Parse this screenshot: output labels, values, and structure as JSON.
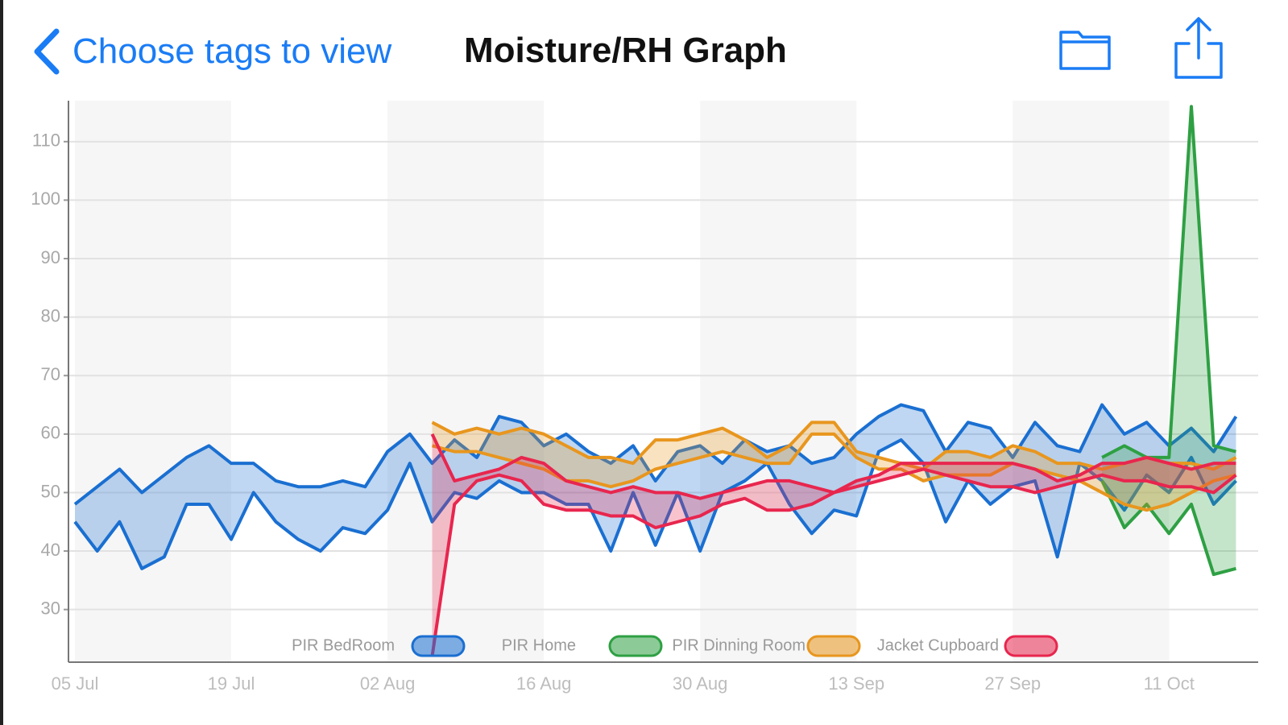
{
  "header": {
    "back": "Choose tags to view",
    "title": "Moisture/RH Graph"
  },
  "chart_data": {
    "type": "band",
    "categories": [
      "05 Jul",
      null,
      null,
      null,
      null,
      null,
      null,
      "19 Jul",
      null,
      null,
      null,
      null,
      null,
      null,
      "02 Aug",
      null,
      null,
      null,
      null,
      null,
      null,
      "16 Aug",
      null,
      null,
      null,
      null,
      null,
      null,
      "30 Aug",
      null,
      null,
      null,
      null,
      null,
      null,
      "13 Sep",
      null,
      null,
      null,
      null,
      null,
      null,
      "27 Sep",
      null,
      null,
      null,
      null,
      null,
      null,
      "11 Oct",
      null,
      null,
      null
    ],
    "ylim": [
      21,
      117
    ],
    "yticks": [
      30,
      40,
      50,
      60,
      70,
      80,
      90,
      100,
      110
    ],
    "grid": true,
    "legend": "bottom",
    "series": [
      {
        "name": "PIR BedRoom",
        "color": "#1a6fd1",
        "high": [
          48,
          51,
          54,
          50,
          53,
          56,
          58,
          55,
          55,
          52,
          51,
          51,
          52,
          51,
          57,
          60,
          55,
          59,
          56,
          63,
          62,
          58,
          60,
          57,
          55,
          58,
          52,
          57,
          58,
          55,
          59,
          57,
          58,
          55,
          56,
          60,
          63,
          65,
          64,
          57,
          62,
          61,
          56,
          62,
          58,
          57,
          65,
          60,
          62,
          58,
          61,
          57,
          63
        ],
        "low": [
          45,
          40,
          45,
          37,
          39,
          48,
          48,
          42,
          50,
          45,
          42,
          40,
          44,
          43,
          47,
          55,
          45,
          50,
          49,
          52,
          50,
          50,
          48,
          48,
          40,
          50,
          41,
          50,
          40,
          50,
          52,
          55,
          48,
          43,
          47,
          46,
          57,
          59,
          55,
          45,
          52,
          48,
          51,
          52,
          39,
          55,
          52,
          47,
          53,
          50,
          56,
          48,
          52
        ]
      },
      {
        "name": "PIR Home",
        "color": "#2ea043",
        "high": [
          null,
          null,
          null,
          null,
          null,
          null,
          null,
          null,
          null,
          null,
          null,
          null,
          null,
          null,
          null,
          null,
          null,
          null,
          null,
          null,
          null,
          null,
          null,
          null,
          null,
          null,
          null,
          null,
          null,
          null,
          null,
          null,
          null,
          null,
          null,
          null,
          null,
          null,
          null,
          null,
          null,
          null,
          null,
          null,
          null,
          null,
          56,
          58,
          56,
          56,
          116,
          58,
          57
        ],
        "low": [
          null,
          null,
          null,
          null,
          null,
          null,
          null,
          null,
          null,
          null,
          null,
          null,
          null,
          null,
          null,
          null,
          null,
          null,
          null,
          null,
          null,
          null,
          null,
          null,
          null,
          null,
          null,
          null,
          null,
          null,
          null,
          null,
          null,
          null,
          null,
          null,
          null,
          null,
          null,
          null,
          null,
          null,
          null,
          null,
          null,
          null,
          52,
          44,
          48,
          43,
          48,
          36,
          37
        ]
      },
      {
        "name": "PIR Dinning Room",
        "color": "#e8961e",
        "high": [
          null,
          null,
          null,
          null,
          null,
          null,
          null,
          null,
          null,
          null,
          null,
          null,
          null,
          null,
          null,
          null,
          62,
          60,
          61,
          60,
          61,
          60,
          58,
          56,
          56,
          55,
          59,
          59,
          60,
          61,
          59,
          56,
          58,
          62,
          62,
          57,
          56,
          55,
          54,
          57,
          57,
          56,
          58,
          57,
          55,
          55,
          54,
          55,
          56,
          55,
          55,
          54,
          56
        ],
        "low": [
          null,
          null,
          null,
          null,
          null,
          null,
          null,
          null,
          null,
          null,
          null,
          null,
          null,
          null,
          null,
          null,
          58,
          57,
          57,
          56,
          55,
          54,
          52,
          52,
          51,
          52,
          54,
          55,
          56,
          57,
          56,
          55,
          55,
          60,
          60,
          56,
          54,
          54,
          52,
          53,
          53,
          53,
          55,
          54,
          53,
          52,
          50,
          48,
          47,
          48,
          50,
          52,
          53
        ]
      },
      {
        "name": "Jacket Cupboard",
        "color": "#e8264e",
        "high": [
          null,
          null,
          null,
          null,
          null,
          null,
          null,
          null,
          null,
          null,
          null,
          null,
          null,
          null,
          null,
          null,
          60,
          52,
          53,
          54,
          56,
          55,
          52,
          51,
          50,
          51,
          50,
          50,
          49,
          50,
          51,
          52,
          52,
          51,
          50,
          52,
          53,
          55,
          55,
          55,
          55,
          55,
          55,
          54,
          52,
          53,
          55,
          55,
          56,
          55,
          54,
          55,
          55
        ],
        "low": [
          null,
          null,
          null,
          null,
          null,
          null,
          null,
          null,
          null,
          null,
          null,
          null,
          null,
          null,
          null,
          null,
          22,
          48,
          52,
          53,
          52,
          48,
          47,
          47,
          46,
          46,
          44,
          45,
          46,
          48,
          49,
          47,
          47,
          48,
          50,
          51,
          52,
          53,
          54,
          53,
          52,
          51,
          51,
          50,
          51,
          52,
          53,
          52,
          52,
          51,
          51,
          50,
          53
        ]
      }
    ]
  }
}
